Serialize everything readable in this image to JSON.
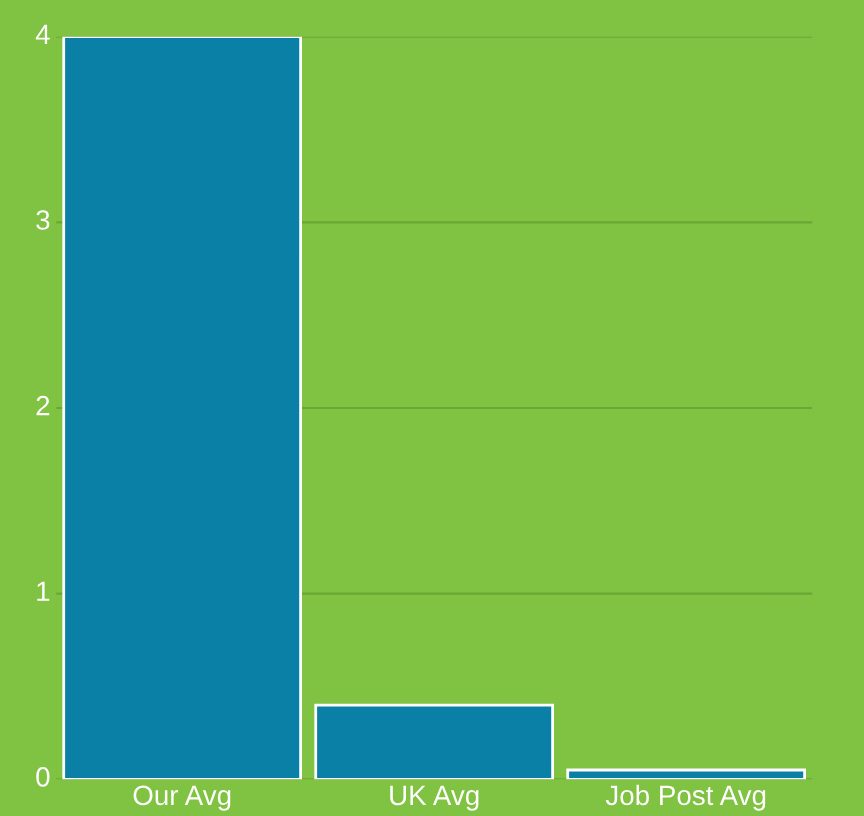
{
  "chart_data": {
    "type": "bar",
    "categories": [
      "Our Avg",
      "UK Avg",
      "Job Post Avg"
    ],
    "values": [
      4,
      0.4,
      0.05
    ],
    "color": "#0a80a6",
    "ylim": [
      0,
      4
    ],
    "yticks": [
      0,
      1,
      2,
      3,
      4
    ],
    "grid": "y"
  }
}
